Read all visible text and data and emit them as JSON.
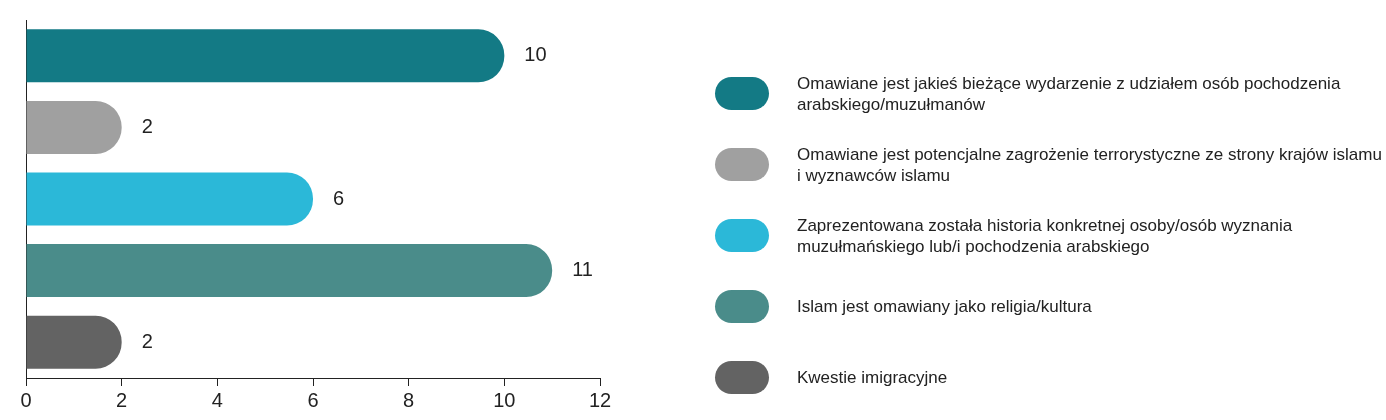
{
  "chart_data": {
    "type": "bar",
    "orientation": "horizontal",
    "categories": [
      null,
      null,
      null,
      null,
      null
    ],
    "series": [
      {
        "name": "Omawiane jest jakieś bieżące wydarzenie z udziałem osób pochodzenia arabskiego/muzułmanów",
        "color": "#137a85",
        "values": [
          10,
          null,
          null,
          null,
          null
        ]
      },
      {
        "name": "Omawiane jest potencjalne zagrożenie terrorystyczne ze strony krajów islamu i wyznawców islamu",
        "color": "#a0a0a0",
        "values": [
          null,
          2,
          null,
          null,
          null
        ]
      },
      {
        "name": "Zaprezentowana została historia konkretnej osoby/osób wyznania muzułmańskiego lub/i pochodzenia arabskiego",
        "color": "#2bb8d8",
        "values": [
          null,
          null,
          6,
          null,
          null
        ]
      },
      {
        "name": "Islam jest omawiany jako religia/kultura",
        "color": "#4a8c8a",
        "values": [
          null,
          null,
          null,
          11,
          null
        ]
      },
      {
        "name": "Kwestie imigracyjne",
        "color": "#636363",
        "values": [
          null,
          null,
          null,
          null,
          2
        ]
      }
    ],
    "xlim": [
      0,
      12
    ],
    "xticks": [
      0,
      2,
      4,
      6,
      8,
      10,
      12
    ],
    "tick_labels": "x",
    "data_labels": true,
    "legend": "right"
  }
}
